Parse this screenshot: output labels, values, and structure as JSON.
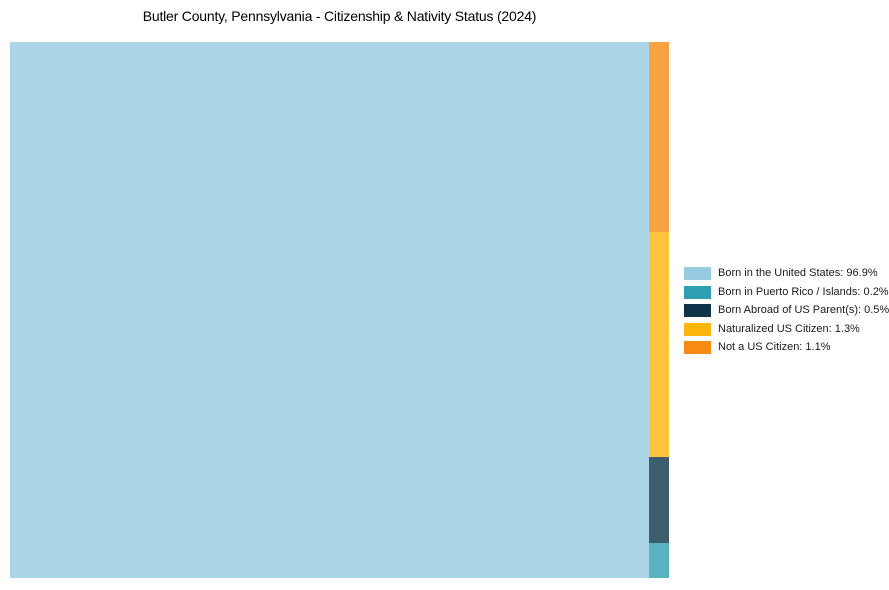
{
  "chart_data": {
    "type": "treemap",
    "title": "Butler County, Pennsylvania - Citizenship & Nativity Status (2024)",
    "unit": "%",
    "legend_position": "right",
    "layout": "largest-item-left-remainder-stacked-right-column",
    "chart_fill_opacity": 0.8,
    "items": [
      {
        "name": "Born in the United States",
        "value": 96.9,
        "color": "#97cbe2"
      },
      {
        "name": "Born in Puerto Rico / Islands",
        "value": 0.2,
        "color": "#2f9fb3"
      },
      {
        "name": "Born Abroad of US Parent(s)",
        "value": 0.5,
        "color": "#0d3449"
      },
      {
        "name": "Naturalized US Citizen",
        "value": 1.3,
        "color": "#fdb60d"
      },
      {
        "name": "Not a US Citizen",
        "value": 1.1,
        "color": "#f78b12"
      }
    ]
  }
}
